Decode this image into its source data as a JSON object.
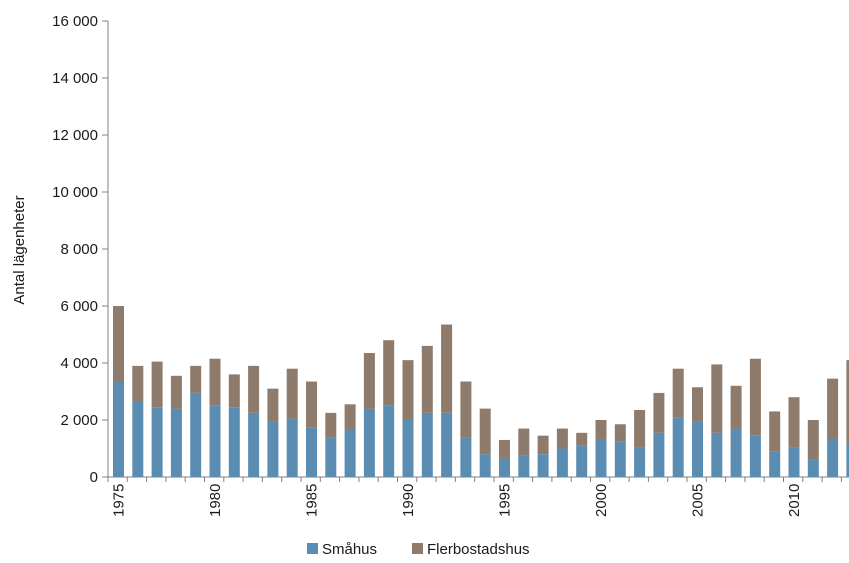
{
  "chart_data": {
    "type": "bar",
    "stacked": true,
    "title": "",
    "xlabel": "",
    "ylabel": "Antal lägenheter",
    "ylim": [
      0,
      16000
    ],
    "yticks": [
      0,
      2000,
      4000,
      6000,
      8000,
      10000,
      12000,
      14000,
      16000
    ],
    "ytick_labels": [
      "0",
      "2 000",
      "4 000",
      "6 000",
      "8 000",
      "10 000",
      "12 000",
      "14 000",
      "16 000"
    ],
    "x_tick_labels": [
      "1975",
      "1980",
      "1985",
      "1990",
      "1995",
      "2000",
      "2005",
      "2010"
    ],
    "categories": [
      1975,
      1976,
      1977,
      1978,
      1979,
      1980,
      1981,
      1982,
      1983,
      1984,
      1985,
      1986,
      1987,
      1988,
      1989,
      1990,
      1991,
      1992,
      1993,
      1994,
      1995,
      1996,
      1997,
      1998,
      1999,
      2000,
      2001,
      2002,
      2003,
      2004,
      2005,
      2006,
      2007,
      2008,
      2009,
      2010,
      2011,
      2012,
      2013
    ],
    "series": [
      {
        "name": "Småhus",
        "color": "#5b8db3",
        "values": [
          3350,
          2650,
          2450,
          2400,
          2950,
          2500,
          2450,
          2250,
          1950,
          2050,
          1750,
          1400,
          1650,
          2400,
          2500,
          2000,
          2250,
          2250,
          1400,
          800,
          650,
          750,
          800,
          1000,
          1100,
          1300,
          1250,
          1050,
          1550,
          2100,
          1950,
          1550,
          1700,
          1450,
          900,
          1050,
          600,
          1350,
          1150
        ]
      },
      {
        "name": "Flerbostadshus",
        "color": "#8e7b6c",
        "values": [
          2650,
          1250,
          1600,
          1150,
          950,
          1650,
          1150,
          1650,
          1150,
          1750,
          1600,
          850,
          900,
          1950,
          2300,
          2100,
          2350,
          3100,
          1950,
          1600,
          650,
          950,
          650,
          700,
          450,
          700,
          600,
          1300,
          1400,
          1700,
          1200,
          2400,
          1500,
          2700,
          1400,
          1750,
          1400,
          2100,
          2950
        ]
      }
    ],
    "grid": false,
    "legend_position": "bottom"
  }
}
